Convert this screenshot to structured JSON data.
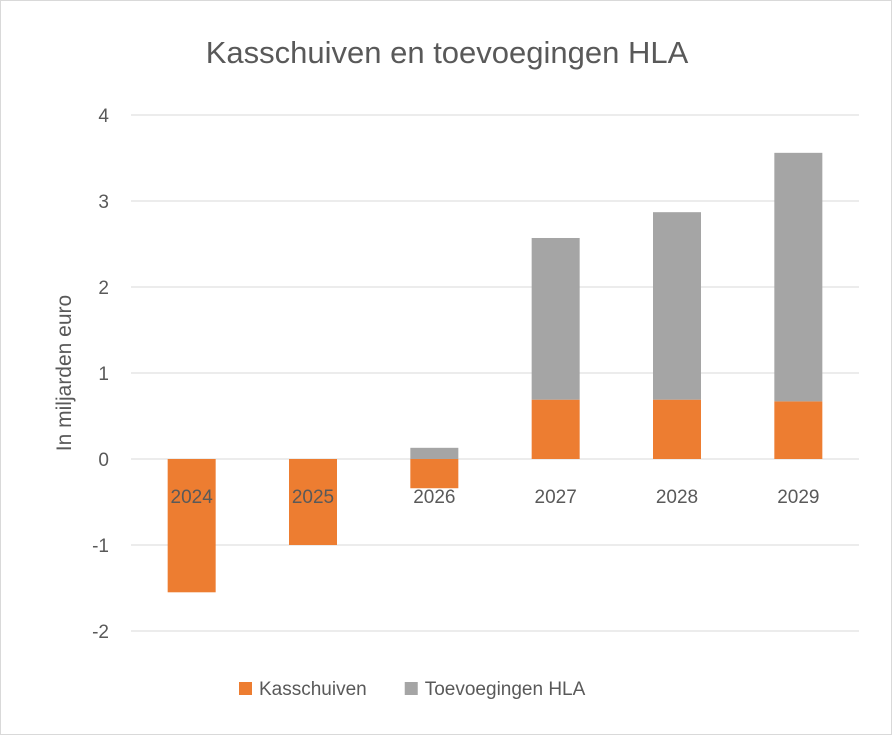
{
  "chart_data": {
    "type": "bar",
    "stacked": true,
    "title": "Kasschuiven en toevoegingen HLA",
    "xlabel": "",
    "ylabel": "In miljarden euro",
    "ylim": [
      -2,
      4
    ],
    "yticks": [
      "-2",
      "-1",
      "0",
      "1",
      "2",
      "3",
      "4"
    ],
    "categories": [
      "2024",
      "2025",
      "2026",
      "2027",
      "2028",
      "2029"
    ],
    "series": [
      {
        "name": "Kasschuiven",
        "color": "#ED7D31",
        "values": [
          -1.55,
          -1.0,
          -0.34,
          0.69,
          0.69,
          0.67
        ]
      },
      {
        "name": "Toevoegingen HLA",
        "color": "#A5A5A5",
        "values": [
          0,
          0,
          0.13,
          1.88,
          2.18,
          2.89
        ]
      }
    ],
    "grid": true,
    "legend": "bottom"
  }
}
